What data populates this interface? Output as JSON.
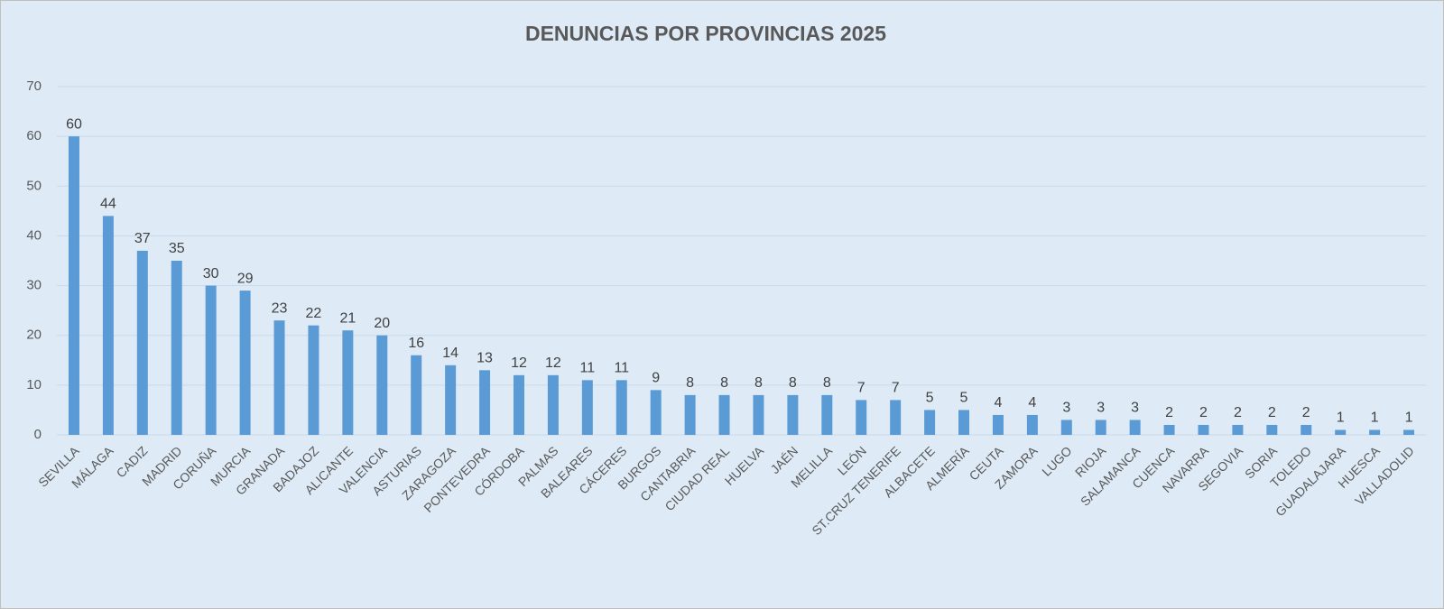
{
  "chart_data": {
    "type": "bar",
    "title": "DENUNCIAS POR PROVINCIAS 2025",
    "categories": [
      "SEVILLA",
      "MÁLAGA",
      "CADIZ",
      "MADRID",
      "CORUÑA",
      "MURCIA",
      "GRANADA",
      "BADAJOZ",
      "ALICANTE",
      "VALENCIA",
      "ASTURIAS",
      "ZARAGOZA",
      "PONTEVEDRA",
      "CÓRDOBA",
      "PALMAS",
      "BALEARES",
      "CÁCERES",
      "BURGOS",
      "CANTABRIA",
      "CIUDAD REAL",
      "HUELVA",
      "JAÉN",
      "MELILLA",
      "LEÓN",
      "ST.CRUZ TENERIFE",
      "ALBACETE",
      "ALMERÍA",
      "CEUTA",
      "ZAMORA",
      "LUGO",
      "RIOJA",
      "SALAMANCA",
      "CUENCA",
      "NAVARRA",
      "SEGOVIA",
      "SORIA",
      "TOLEDO",
      "GUADALAJARA",
      "HUESCA",
      "VALLADOLID"
    ],
    "values": [
      60,
      44,
      37,
      35,
      30,
      29,
      23,
      22,
      21,
      20,
      16,
      14,
      13,
      12,
      12,
      11,
      11,
      9,
      8,
      8,
      8,
      8,
      8,
      7,
      7,
      5,
      5,
      4,
      4,
      3,
      3,
      3,
      2,
      2,
      2,
      2,
      2,
      1,
      1,
      1
    ],
    "color": "#5b9bd5",
    "ylim": [
      0,
      70
    ],
    "yticks": [
      0,
      10,
      20,
      30,
      40,
      50,
      60,
      70
    ],
    "grid": true
  }
}
